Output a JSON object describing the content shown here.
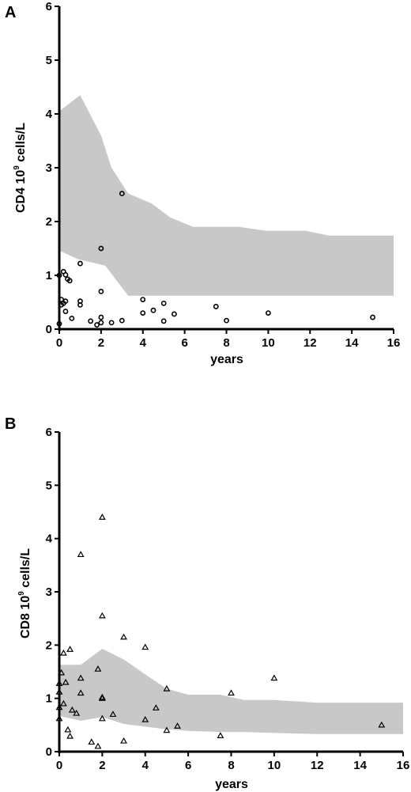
{
  "chart_data": [
    {
      "panel": "A",
      "type": "scatter",
      "ylabel_main": "CD4 10",
      "ylabel_sup": "9",
      "ylabel_rest": " cells/L",
      "xlabel": "years",
      "xlim": [
        0,
        16
      ],
      "ylim": [
        0,
        6
      ],
      "xticks": [
        0,
        2,
        4,
        6,
        8,
        10,
        12,
        14,
        16
      ],
      "yticks": [
        0,
        1,
        2,
        3,
        4,
        5,
        6
      ],
      "marker": "circle",
      "band_upper": [
        [
          0,
          4.05
        ],
        [
          1,
          4.35
        ],
        [
          2,
          3.6
        ],
        [
          2.5,
          3.0
        ],
        [
          3.3,
          2.52
        ],
        [
          4.4,
          2.34
        ],
        [
          5.3,
          2.08
        ],
        [
          6.4,
          1.9
        ],
        [
          8.6,
          1.9
        ],
        [
          9.9,
          1.83
        ],
        [
          11.8,
          1.83
        ],
        [
          12.9,
          1.74
        ],
        [
          16,
          1.74
        ]
      ],
      "band_lower": [
        [
          0,
          1.46
        ],
        [
          0.9,
          1.3
        ],
        [
          2.2,
          1.18
        ],
        [
          3.3,
          0.62
        ],
        [
          16,
          0.62
        ]
      ],
      "points": [
        [
          0,
          1.0
        ],
        [
          0.2,
          1.07
        ],
        [
          0.3,
          1.01
        ],
        [
          0.4,
          0.93
        ],
        [
          0.5,
          0.9
        ],
        [
          1.0,
          1.22
        ],
        [
          2.0,
          1.5
        ],
        [
          3.0,
          2.52
        ],
        [
          2.0,
          0.7
        ],
        [
          0.1,
          0.55
        ],
        [
          0.2,
          0.48
        ],
        [
          0.3,
          0.52
        ],
        [
          0.1,
          0.45
        ],
        [
          1.0,
          0.52
        ],
        [
          1.0,
          0.45
        ],
        [
          0.3,
          0.33
        ],
        [
          0.6,
          0.2
        ],
        [
          0.0,
          0.1
        ],
        [
          1.5,
          0.15
        ],
        [
          1.8,
          0.08
        ],
        [
          2.0,
          0.22
        ],
        [
          2.0,
          0.12
        ],
        [
          2.5,
          0.12
        ],
        [
          3.0,
          0.16
        ],
        [
          4.0,
          0.55
        ],
        [
          4.0,
          0.3
        ],
        [
          4.5,
          0.35
        ],
        [
          5.0,
          0.48
        ],
        [
          5.0,
          0.15
        ],
        [
          5.5,
          0.28
        ],
        [
          7.5,
          0.42
        ],
        [
          8.0,
          0.16
        ],
        [
          10.0,
          0.3
        ],
        [
          15.0,
          0.22
        ]
      ]
    },
    {
      "panel": "B",
      "type": "scatter",
      "ylabel_main": "CD8 10",
      "ylabel_sup": "9",
      "ylabel_rest": " cells/L",
      "xlabel": "years",
      "xlim": [
        0,
        16
      ],
      "ylim": [
        0,
        6
      ],
      "xticks": [
        0,
        2,
        4,
        6,
        8,
        10,
        12,
        14,
        16
      ],
      "yticks": [
        0,
        1,
        2,
        3,
        4,
        5,
        6
      ],
      "marker": "triangle",
      "band_upper": [
        [
          0,
          1.63
        ],
        [
          1.0,
          1.63
        ],
        [
          2.0,
          1.93
        ],
        [
          3.0,
          1.73
        ],
        [
          4.0,
          1.45
        ],
        [
          5.0,
          1.18
        ],
        [
          6.0,
          1.07
        ],
        [
          7.5,
          1.07
        ],
        [
          8.6,
          0.97
        ],
        [
          10.0,
          0.97
        ],
        [
          12.0,
          0.92
        ],
        [
          16,
          0.92
        ]
      ],
      "band_lower": [
        [
          0,
          0.67
        ],
        [
          1.0,
          0.58
        ],
        [
          2.0,
          0.65
        ],
        [
          3.0,
          0.52
        ],
        [
          4.0,
          0.47
        ],
        [
          5.0,
          0.42
        ],
        [
          6.0,
          0.39
        ],
        [
          7.5,
          0.37
        ],
        [
          8.6,
          0.37
        ],
        [
          10.0,
          0.35
        ],
        [
          12.0,
          0.33
        ],
        [
          16,
          0.33
        ]
      ],
      "points": [
        [
          0.0,
          1.28
        ],
        [
          0.1,
          1.48
        ],
        [
          0.2,
          1.85
        ],
        [
          0.3,
          1.3
        ],
        [
          0.5,
          1.92
        ],
        [
          0.0,
          1.12
        ],
        [
          0.0,
          0.83
        ],
        [
          0.2,
          0.9
        ],
        [
          0.6,
          0.78
        ],
        [
          0.8,
          0.72
        ],
        [
          0.0,
          0.62
        ],
        [
          0.4,
          0.41
        ],
        [
          0.5,
          0.29
        ],
        [
          1.0,
          1.38
        ],
        [
          1.0,
          1.1
        ],
        [
          1.0,
          3.7
        ],
        [
          1.8,
          1.55
        ],
        [
          2.0,
          4.4
        ],
        [
          2.0,
          2.55
        ],
        [
          2.0,
          1.0
        ],
        [
          2.0,
          1.02
        ],
        [
          2.0,
          0.62
        ],
        [
          2.5,
          0.7
        ],
        [
          1.5,
          0.18
        ],
        [
          1.8,
          0.1
        ],
        [
          3.0,
          2.15
        ],
        [
          3.0,
          0.2
        ],
        [
          4.0,
          1.96
        ],
        [
          4.0,
          0.6
        ],
        [
          4.5,
          0.82
        ],
        [
          5.0,
          1.18
        ],
        [
          5.0,
          0.4
        ],
        [
          5.5,
          0.48
        ],
        [
          7.5,
          0.3
        ],
        [
          8.0,
          1.1
        ],
        [
          10.0,
          1.38
        ],
        [
          15.0,
          0.5
        ]
      ]
    }
  ]
}
